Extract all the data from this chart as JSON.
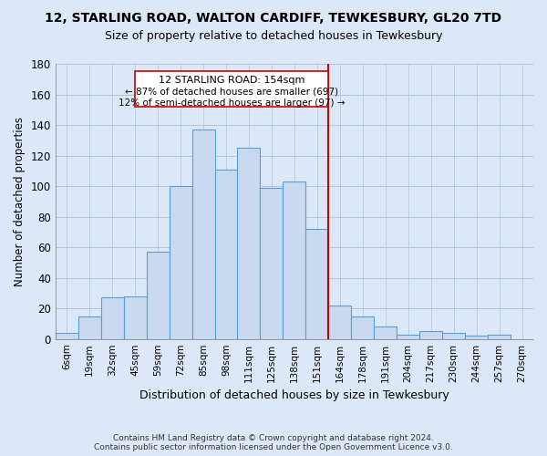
{
  "title": "12, STARLING ROAD, WALTON CARDIFF, TEWKESBURY, GL20 7TD",
  "subtitle": "Size of property relative to detached houses in Tewkesbury",
  "xlabel": "Distribution of detached houses by size in Tewkesbury",
  "ylabel": "Number of detached properties",
  "footer_line1": "Contains HM Land Registry data © Crown copyright and database right 2024.",
  "footer_line2": "Contains public sector information licensed under the Open Government Licence v3.0.",
  "categories": [
    "6sqm",
    "19sqm",
    "32sqm",
    "45sqm",
    "59sqm",
    "72sqm",
    "85sqm",
    "98sqm",
    "111sqm",
    "125sqm",
    "138sqm",
    "151sqm",
    "164sqm",
    "178sqm",
    "191sqm",
    "204sqm",
    "217sqm",
    "230sqm",
    "244sqm",
    "257sqm",
    "270sqm"
  ],
  "values": [
    4,
    15,
    27,
    28,
    57,
    100,
    137,
    111,
    125,
    99,
    103,
    72,
    22,
    15,
    8,
    3,
    5,
    4,
    2,
    3,
    0
  ],
  "bar_color": "#c8d9f0",
  "bar_edge_color": "#5a9fd4",
  "highlight_line_color": "#cc0000",
  "highlight_line_index": 11,
  "annotation_line1": "12 STARLING ROAD: 154sqm",
  "annotation_line2": "← 87% of detached houses are smaller (697)",
  "annotation_line3": "12% of semi-detached houses are larger (97) →",
  "annotation_box_color": "#ffffff",
  "annotation_box_edge_color": "#cc0000",
  "ylim": [
    0,
    180
  ],
  "yticks": [
    0,
    20,
    40,
    60,
    80,
    100,
    120,
    140,
    160,
    180
  ],
  "bg_color": "#dce8f8",
  "plot_bg_color": "#dce8f8",
  "grid_color": "#b0c4d8",
  "title_fontsize": 10,
  "subtitle_fontsize": 9
}
